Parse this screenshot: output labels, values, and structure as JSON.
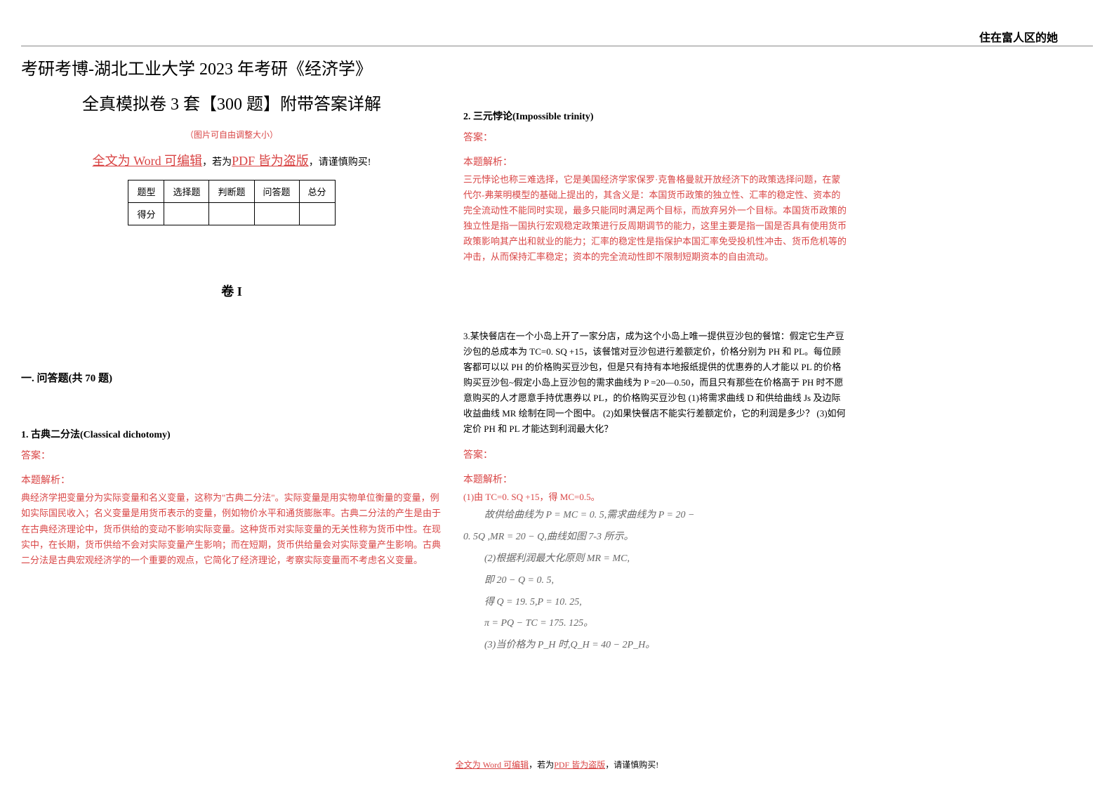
{
  "header": {
    "right_text": "住在富人区的她"
  },
  "left": {
    "title_line1": "考研考博-湖北工业大学 2023 年考研《经济学》",
    "title_line2": "全真模拟卷 3 套【300 题】附带答案详解",
    "small_note": "（图片可自由调整大小）",
    "edit_note_red1": "全文为 Word 可编辑",
    "edit_note_mid": "，若为",
    "edit_note_red2": "PDF 皆为盗版",
    "edit_note_end": "，请谨慎购买!",
    "table": {
      "headers": [
        "题型",
        "选择题",
        "判断题",
        "问答题",
        "总分"
      ],
      "row_label": "得分"
    },
    "volume": "卷 I",
    "section": "一. 问答题(共 70 题)",
    "q1": {
      "title": "1. 古典二分法(Classical dichotomy)",
      "answer_label": "答案：",
      "analysis_label": "本题解析：",
      "analysis_text": "典经济学把变量分为实际变量和名义变量，这称为\"古典二分法\"。实际变量是用实物单位衡量的变量，例如实际国民收入；名义变量是用货币表示的变量，例如物价水平和通货膨胀率。古典二分法的产生是由于在古典经济理论中，货币供给的变动不影响实际变量。这种货币对实际变量的无关性称为货币中性。在现实中，在长期，货币供给不会对实际变量产生影响；而在短期，货币供给量会对实际变量产生影响。古典二分法是古典宏观经济学的一个重要的观点，它简化了经济理论，考察实际变量而不考虑名义变量。"
    }
  },
  "right": {
    "q2": {
      "title": "2. 三元悖论(Impossible trinity)",
      "answer_label": "答案：",
      "analysis_label": "本题解析：",
      "analysis_text": "三元悖论也称三难选择，它是美国经济学家保罗·克鲁格曼就开放经济下的政策选择问题，在蒙代尔-弗莱明模型的基础上提出的，其含义是：本国货币政策的独立性、汇率的稳定性、资本的完全流动性不能同时实现，最多只能同时满足两个目标，而放弃另外一个目标。本国货币政策的独立性是指一国执行宏观稳定政策进行反周期调节的能力，这里主要是指一国是否具有使用货币政策影响其产出和就业的能力；汇率的稳定性是指保护本国汇率免受投机性冲击、货币危机等的冲击，从而保持汇率稳定；资本的完全流动性即不限制短期资本的自由流动。"
    },
    "q3": {
      "text": "3.某快餐店在一个小岛上开了一家分店，成为这个小岛上唯一提供豆沙包的餐馆：假定它生产豆沙包的总成本为 TC=0. SQ +15，该餐馆对豆沙包进行差额定价，价格分别为 PH 和 PL。每位顾客都可以以 PH 的价格购买豆沙包，但是只有持有本地报纸提供的优惠券的人才能以 PL 的价格购买豆沙包~假定小岛上豆沙包的需求曲线为 P =20—0.50，而且只有那些在价格高于 PH 时不愿意购买的人才愿意手持优惠券以 PL，的价格购买豆沙包 (1)将需求曲线 D 和供给曲线 Js 及边际收益曲线 MR 绘制在同一个图中。 (2)如果快餐店不能实行差额定价，它的利润是多少？ (3)如何定价 PH 和 PL 才能达到利润最大化？",
      "answer_label": "答案：",
      "analysis_label": "本题解析：",
      "analysis_line1": "(1)由 TC=0. SQ +15，得 MC=0.5。",
      "math": {
        "line1": "故供给曲线为 P = MC = 0. 5,需求曲线为 P = 20 −",
        "line2": "0. 5Q ,MR = 20 − Q,曲线如图 7-3 所示。",
        "line3": "(2)根据利润最大化原则 MR = MC,",
        "line4": "即 20 − Q = 0. 5,",
        "line5": "得 Q = 19. 5,P = 10. 25,",
        "line6": "π = PQ − TC = 175. 125。",
        "line7": "(3)当价格为 P_H 时,Q_H = 40 − 2P_H。"
      }
    }
  },
  "footer": {
    "red1": "全文为 Word 可编辑",
    "mid": "，若为",
    "red2": "PDF 皆为盗版",
    "end": "，请谨慎购买!"
  },
  "colors": {
    "red": "#d94545",
    "text": "#000000",
    "math_gray": "#666666"
  }
}
